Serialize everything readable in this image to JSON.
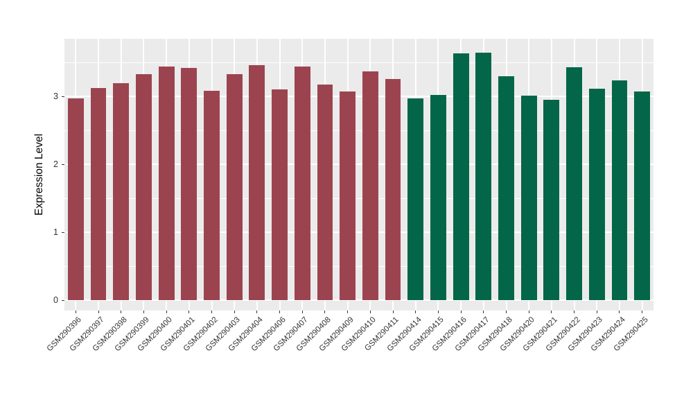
{
  "figure": {
    "background": "#FFFFFF"
  },
  "chart_data": {
    "type": "bar",
    "title": "",
    "ylabel": "Expression Level",
    "xlabel": "",
    "ylim": [
      -0.15,
      3.85
    ],
    "yticks": [
      0,
      1,
      2,
      3
    ],
    "yticks_minor": [
      0.5,
      1.5,
      2.5,
      3.5
    ],
    "grid": true,
    "legend": "none",
    "panel_background": "#EBEBEB",
    "grid_color": "#FFFFFF",
    "tick_mark_color": "#333333",
    "axis_text_color": "#333333",
    "bar_width_fraction": 0.7,
    "groups": [
      {
        "name": "group-1",
        "color": "#9B4450"
      },
      {
        "name": "group-2",
        "color": "#046648"
      }
    ],
    "points": [
      {
        "label": "GSM290396",
        "value": 2.97,
        "group": 0
      },
      {
        "label": "GSM290397",
        "value": 3.13,
        "group": 0
      },
      {
        "label": "GSM290398",
        "value": 3.2,
        "group": 0
      },
      {
        "label": "GSM290399",
        "value": 3.33,
        "group": 0
      },
      {
        "label": "GSM290400",
        "value": 3.44,
        "group": 0
      },
      {
        "label": "GSM290401",
        "value": 3.42,
        "group": 0
      },
      {
        "label": "GSM290402",
        "value": 3.08,
        "group": 0
      },
      {
        "label": "GSM290403",
        "value": 3.33,
        "group": 0
      },
      {
        "label": "GSM290404",
        "value": 3.46,
        "group": 0
      },
      {
        "label": "GSM290406",
        "value": 3.11,
        "group": 0
      },
      {
        "label": "GSM290407",
        "value": 3.44,
        "group": 0
      },
      {
        "label": "GSM290408",
        "value": 3.18,
        "group": 0
      },
      {
        "label": "GSM290409",
        "value": 3.07,
        "group": 0
      },
      {
        "label": "GSM290410",
        "value": 3.37,
        "group": 0
      },
      {
        "label": "GSM290411",
        "value": 3.26,
        "group": 0
      },
      {
        "label": "GSM290414",
        "value": 2.97,
        "group": 1
      },
      {
        "label": "GSM290415",
        "value": 3.02,
        "group": 1
      },
      {
        "label": "GSM290416",
        "value": 3.64,
        "group": 1
      },
      {
        "label": "GSM290417",
        "value": 3.65,
        "group": 1
      },
      {
        "label": "GSM290418",
        "value": 3.3,
        "group": 1
      },
      {
        "label": "GSM290420",
        "value": 3.01,
        "group": 1
      },
      {
        "label": "GSM290421",
        "value": 2.95,
        "group": 1
      },
      {
        "label": "GSM290422",
        "value": 3.43,
        "group": 1
      },
      {
        "label": "GSM290423",
        "value": 3.12,
        "group": 1
      },
      {
        "label": "GSM290424",
        "value": 3.24,
        "group": 1
      },
      {
        "label": "GSM290425",
        "value": 3.07,
        "group": 1
      }
    ]
  }
}
